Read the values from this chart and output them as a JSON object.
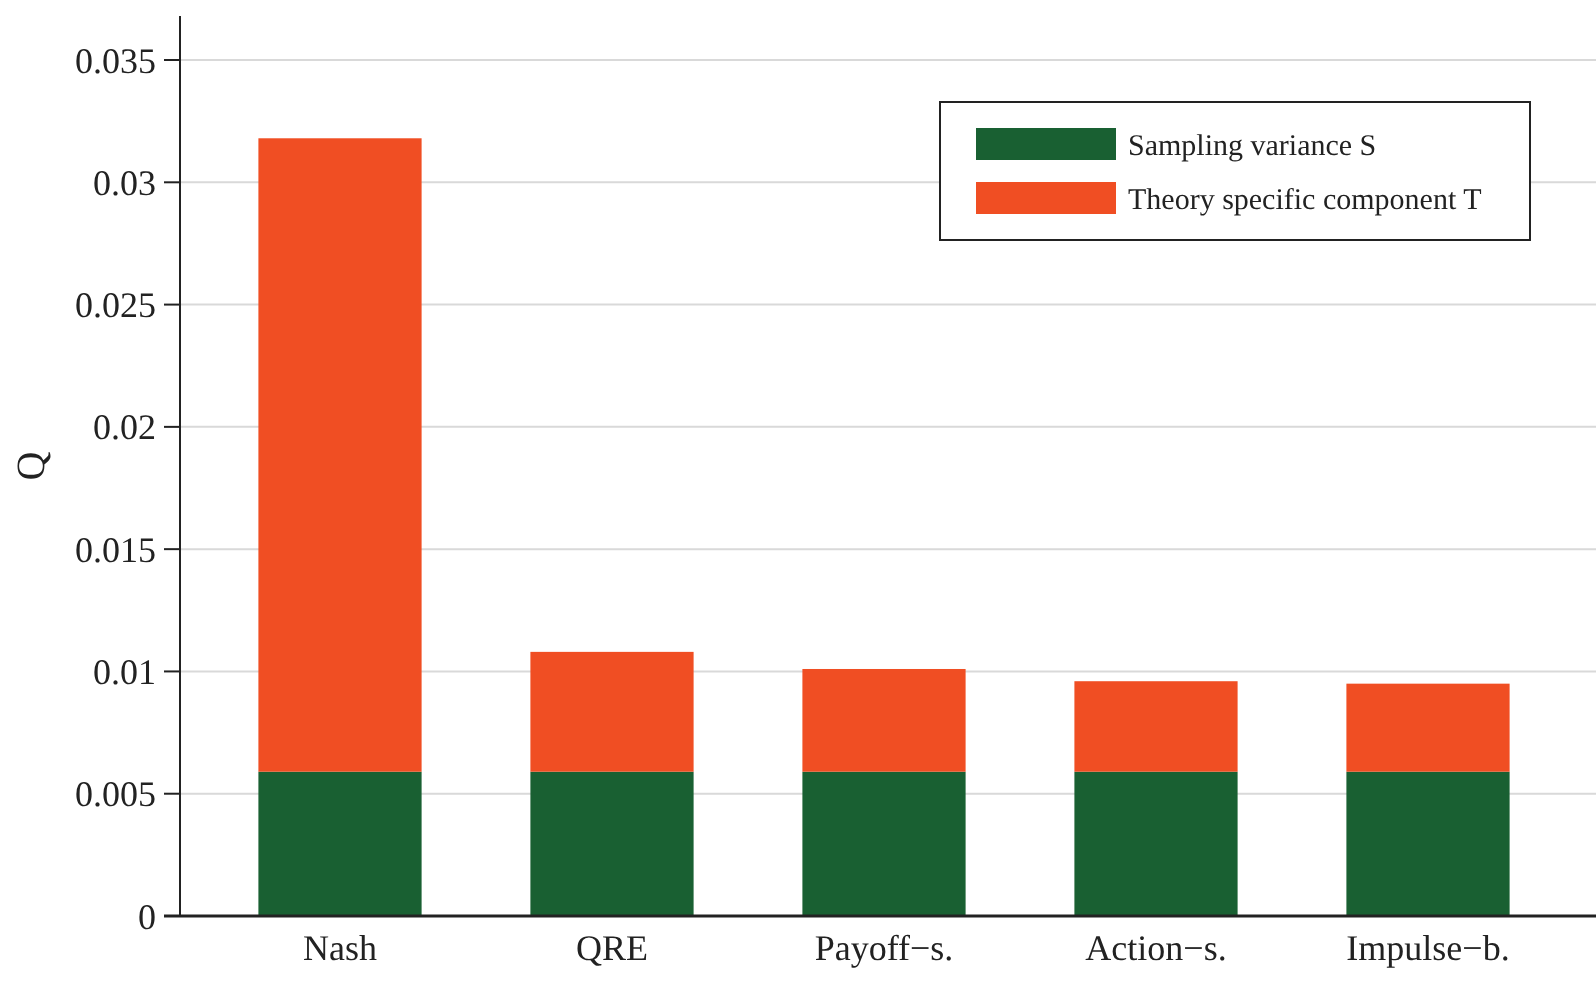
{
  "chart_data": {
    "type": "bar",
    "stacked": true,
    "ylabel": "Q",
    "categories": [
      "Nash",
      "QRE",
      "Payoff−s.",
      "Action−s.",
      "Impulse−b."
    ],
    "series": [
      {
        "name": "Sampling variance S",
        "color": "#196032",
        "values": [
          0.0059,
          0.0059,
          0.0059,
          0.0059,
          0.0059
        ]
      },
      {
        "name": "Theory specific component T",
        "color": "#f04e23",
        "values": [
          0.0259,
          0.0049,
          0.0042,
          0.0037,
          0.0036
        ]
      }
    ],
    "ylim": [
      0,
      0.0368
    ],
    "yticks": [
      0,
      0.005,
      0.01,
      0.015,
      0.02,
      0.025,
      0.03,
      0.035
    ],
    "grid": "y",
    "legend": "top right"
  }
}
